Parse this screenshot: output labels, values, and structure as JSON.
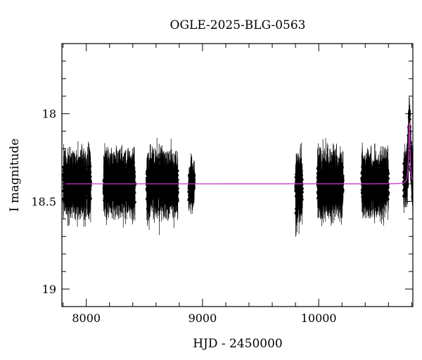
{
  "chart_data": {
    "type": "scatter",
    "title": "OGLE-2025-BLG-0563",
    "xlabel": "HJD - 2450000",
    "ylabel": "I magnitude",
    "xlim": [
      7790,
      10810
    ],
    "ylim": [
      19.1,
      17.6
    ],
    "y_inverted": true,
    "grid": false,
    "x_ticks": [
      {
        "value": 8000,
        "label": "8000"
      },
      {
        "value": 9000,
        "label": "9000"
      },
      {
        "value": 10000,
        "label": "10000"
      }
    ],
    "y_ticks": [
      {
        "value": 18,
        "label": "18"
      },
      {
        "value": 18.5,
        "label": "18.5"
      },
      {
        "value": 19,
        "label": "19"
      }
    ],
    "x_minor_step": 200,
    "y_minor_step": 0.1,
    "colors": {
      "data": "#000000",
      "model": "#cc33cc",
      "axes": "#000000"
    },
    "series": [
      {
        "kind": "points_with_errorbars",
        "description_seasons": [
          {
            "x_start": 7800,
            "x_end": 8040,
            "mag_center": 18.4,
            "mag_spread": 0.08,
            "err_range": [
              0.04,
              0.15
            ]
          },
          {
            "x_start": 8150,
            "x_end": 8420,
            "mag_center": 18.4,
            "mag_spread": 0.08,
            "err_range": [
              0.04,
              0.15
            ]
          },
          {
            "x_start": 8520,
            "x_end": 8790,
            "mag_center": 18.4,
            "mag_spread": 0.08,
            "err_range": [
              0.04,
              0.15
            ]
          },
          {
            "x_start": 8880,
            "x_end": 8930,
            "mag_center": 18.4,
            "mag_spread": 0.07,
            "err_range": [
              0.03,
              0.1
            ]
          },
          {
            "x_start": 9800,
            "x_end": 9860,
            "mag_center": 18.42,
            "mag_spread": 0.09,
            "err_range": [
              0.05,
              0.17
            ]
          },
          {
            "x_start": 9990,
            "x_end": 10210,
            "mag_center": 18.4,
            "mag_spread": 0.08,
            "err_range": [
              0.04,
              0.15
            ]
          },
          {
            "x_start": 10370,
            "x_end": 10600,
            "mag_center": 18.4,
            "mag_spread": 0.08,
            "err_range": [
              0.04,
              0.15
            ]
          },
          {
            "x_start": 10730,
            "x_end": 10810,
            "mag_center": 18.4,
            "mag_spread": 0.08,
            "err_range": [
              0.04,
              0.12
            ]
          }
        ],
        "event": {
          "t0": 10780,
          "peak_mag": 18.05,
          "baseline_mag": 18.4,
          "width": 10
        }
      },
      {
        "kind": "model_line",
        "baseline_mag": 18.4,
        "event": {
          "t0": 10780,
          "peak_mag": 18.05,
          "width": 7
        }
      }
    ]
  }
}
